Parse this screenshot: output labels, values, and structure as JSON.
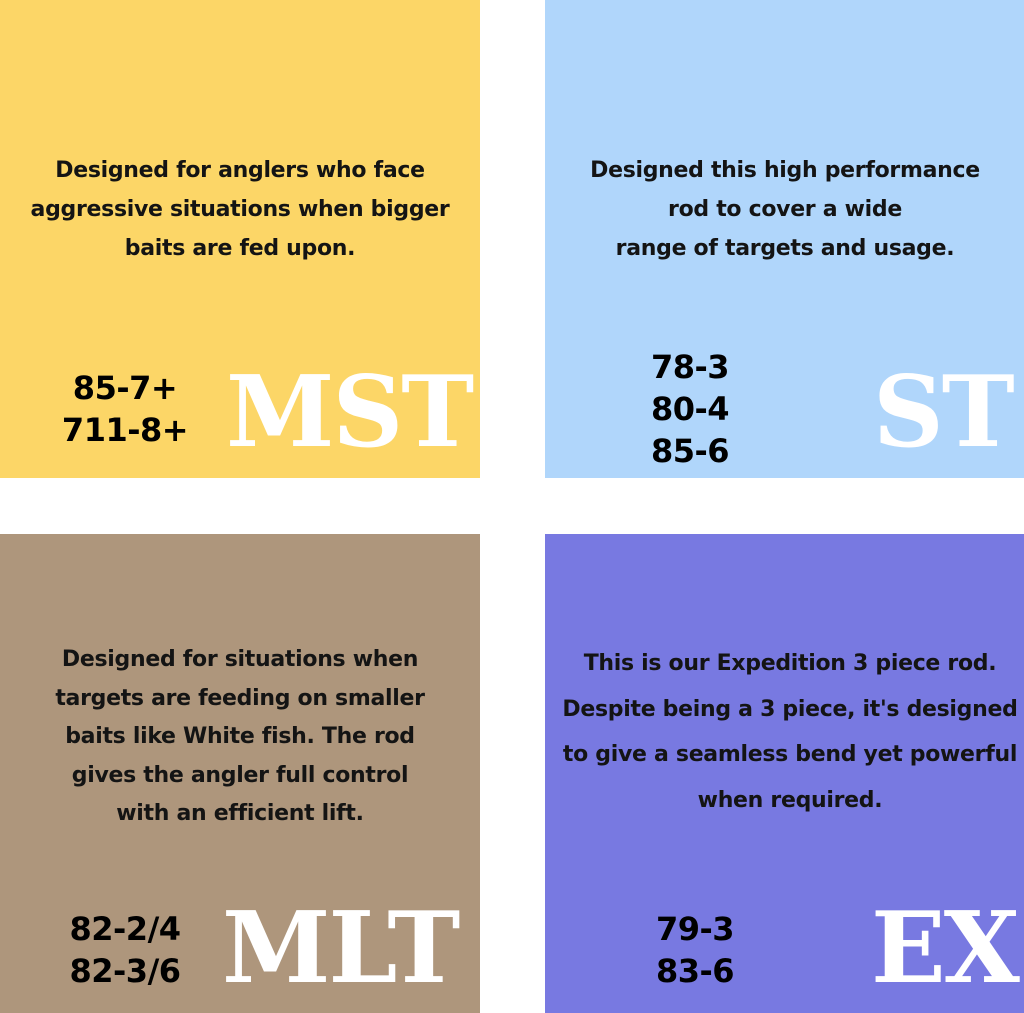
{
  "colors": {
    "mst": "#fcd667",
    "st": "#b0d6fb",
    "mlt": "#ae967c",
    "ex": "#7879e1",
    "background": "#ffffff",
    "series_text": "#ffffff"
  },
  "panels": {
    "mst": {
      "description": "Designed for anglers who face\naggressive situations when bigger\nbaits are fed upon.",
      "models": [
        "85-7+",
        "711-8+"
      ],
      "series": "MST"
    },
    "st": {
      "description": "Designed this high performance\nrod to cover a wide\nrange of targets and usage.",
      "models": [
        "78-3",
        "80-4",
        "85-6"
      ],
      "series": "ST"
    },
    "mlt": {
      "description": "Designed for situations when\ntargets are feeding on smaller\nbaits like White fish. The rod\ngives the angler full control\nwith an efficient lift.",
      "models": [
        "82-2/4",
        "82-3/6"
      ],
      "series": "MLT"
    },
    "ex": {
      "description": "This is our Expedition 3 piece rod.\nDespite being a 3 piece, it's designed\nto give a seamless bend yet powerful\nwhen required.",
      "models": [
        "79-3",
        "83-6"
      ],
      "series": "EX"
    }
  }
}
